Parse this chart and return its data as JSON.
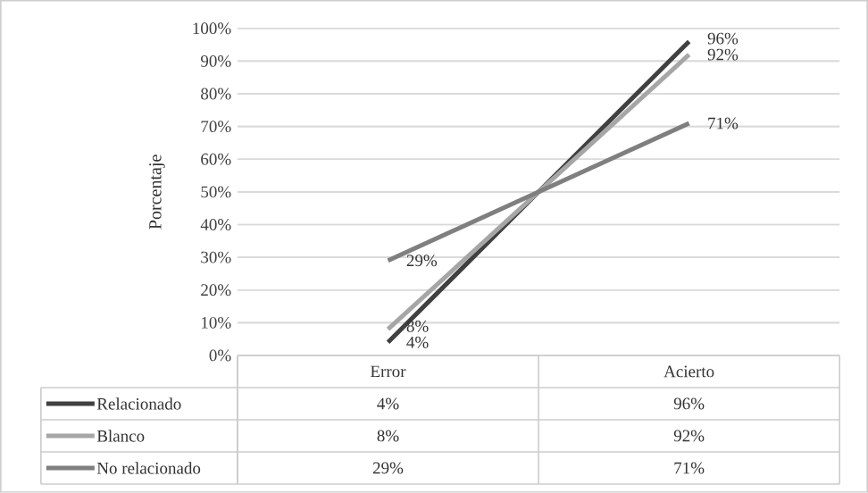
{
  "chart_data": {
    "type": "line",
    "ylabel": "Porcentaje",
    "categories": [
      "Error",
      "Acierto"
    ],
    "series": [
      {
        "name": "Relacionado",
        "color": "#404040",
        "values": [
          4,
          96
        ],
        "value_labels": [
          "4%",
          "96%"
        ]
      },
      {
        "name": "Blanco",
        "color": "#a6a6a6",
        "values": [
          8,
          92
        ],
        "value_labels": [
          "8%",
          "92%"
        ]
      },
      {
        "name": "No relacionado",
        "color": "#7f7f7f",
        "values": [
          29,
          71
        ],
        "value_labels": [
          "29%",
          "71%"
        ]
      }
    ],
    "ylim": [
      0,
      100
    ],
    "yticks": [
      {
        "value": 0,
        "label": "0%"
      },
      {
        "value": 10,
        "label": "10%"
      },
      {
        "value": 20,
        "label": "20%"
      },
      {
        "value": 30,
        "label": "30%"
      },
      {
        "value": 40,
        "label": "40%"
      },
      {
        "value": 50,
        "label": "50%"
      },
      {
        "value": 60,
        "label": "60%"
      },
      {
        "value": 70,
        "label": "70%"
      },
      {
        "value": 80,
        "label": "80%"
      },
      {
        "value": 90,
        "label": "90%"
      },
      {
        "value": 100,
        "label": "100%"
      }
    ],
    "grid": "y",
    "legend": "bottom",
    "marker": "none",
    "line_style": "solid"
  }
}
